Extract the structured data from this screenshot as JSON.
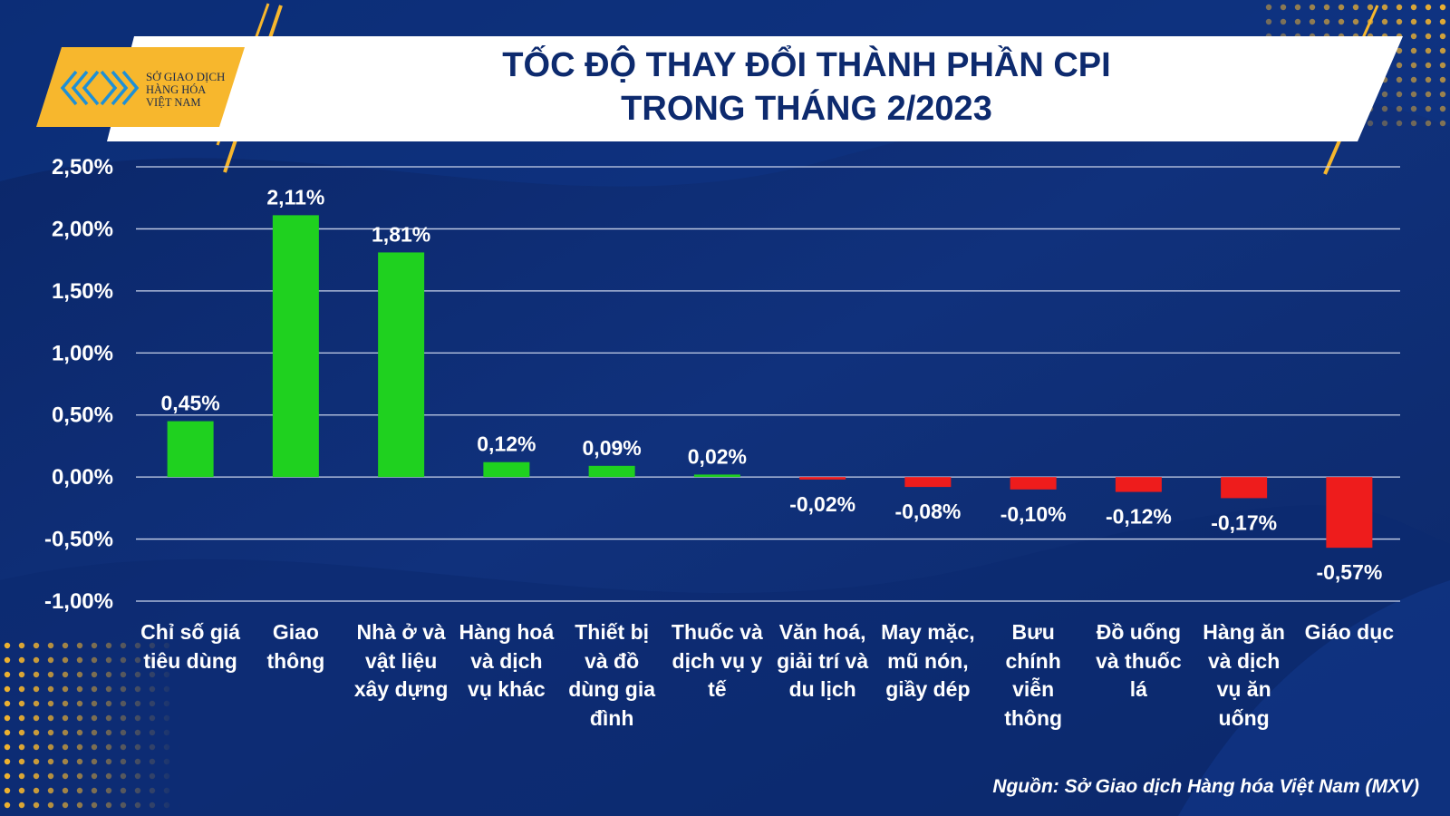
{
  "title": {
    "line1": "TỐC ĐỘ THAY ĐỔI THÀNH PHẦN CPI",
    "line2": "TRONG THÁNG 2/2023"
  },
  "logo": {
    "line1": "SỞ GIAO DỊCH",
    "line2": "HÀNG HÓA",
    "line3": "VIỆT NAM"
  },
  "source": "Nguồn: Sở Giao dịch Hàng hóa Việt Nam (MXV)",
  "colors": {
    "positive": "#1fd11f",
    "negative": "#ee1c1c",
    "background": "#0d2a6e",
    "accent": "#f7b72d"
  },
  "chart_data": {
    "type": "bar",
    "title": "TỐC ĐỘ THAY ĐỔI THÀNH PHẦN CPI TRONG THÁNG 2/2023",
    "xlabel": "",
    "ylabel": "",
    "ylim": [
      -1.0,
      2.5
    ],
    "grid": true,
    "legend": "none",
    "yticks": [
      2.5,
      2.0,
      1.5,
      1.0,
      0.5,
      0.0,
      -0.5,
      -1.0
    ],
    "ytick_labels": [
      "2,50%",
      "2,00%",
      "1,50%",
      "1,00%",
      "0,50%",
      "0,00%",
      "-0,50%",
      "-1,00%"
    ],
    "categories": [
      [
        "Chỉ số giá",
        "tiêu dùng"
      ],
      [
        "Giao",
        "thông"
      ],
      [
        "Nhà ở và",
        "vật liệu",
        "xây dựng"
      ],
      [
        "Hàng hoá",
        "và dịch",
        "vụ khác"
      ],
      [
        "Thiết bị",
        "và đồ",
        "dùng gia",
        "đình"
      ],
      [
        "Thuốc và",
        "dịch vụ y",
        "tế"
      ],
      [
        "Văn hoá,",
        "giải trí và",
        "du lịch"
      ],
      [
        "May mặc,",
        "mũ nón,",
        "giầy dép"
      ],
      [
        "Bưu",
        "chính",
        "viễn",
        "thông"
      ],
      [
        "Đồ uống",
        "và thuốc",
        "lá"
      ],
      [
        "Hàng ăn",
        "và dịch",
        "vụ ăn",
        "uống"
      ],
      [
        "Giáo dục"
      ]
    ],
    "values": [
      0.45,
      2.11,
      1.81,
      0.12,
      0.09,
      0.02,
      -0.02,
      -0.08,
      -0.1,
      -0.12,
      -0.17,
      -0.57
    ],
    "value_labels": [
      "0,45%",
      "2,11%",
      "1,81%",
      "0,12%",
      "0,09%",
      "0,02%",
      "-0,02%",
      "-0,08%",
      "-0,10%",
      "-0,12%",
      "-0,17%",
      "-0,57%"
    ]
  }
}
